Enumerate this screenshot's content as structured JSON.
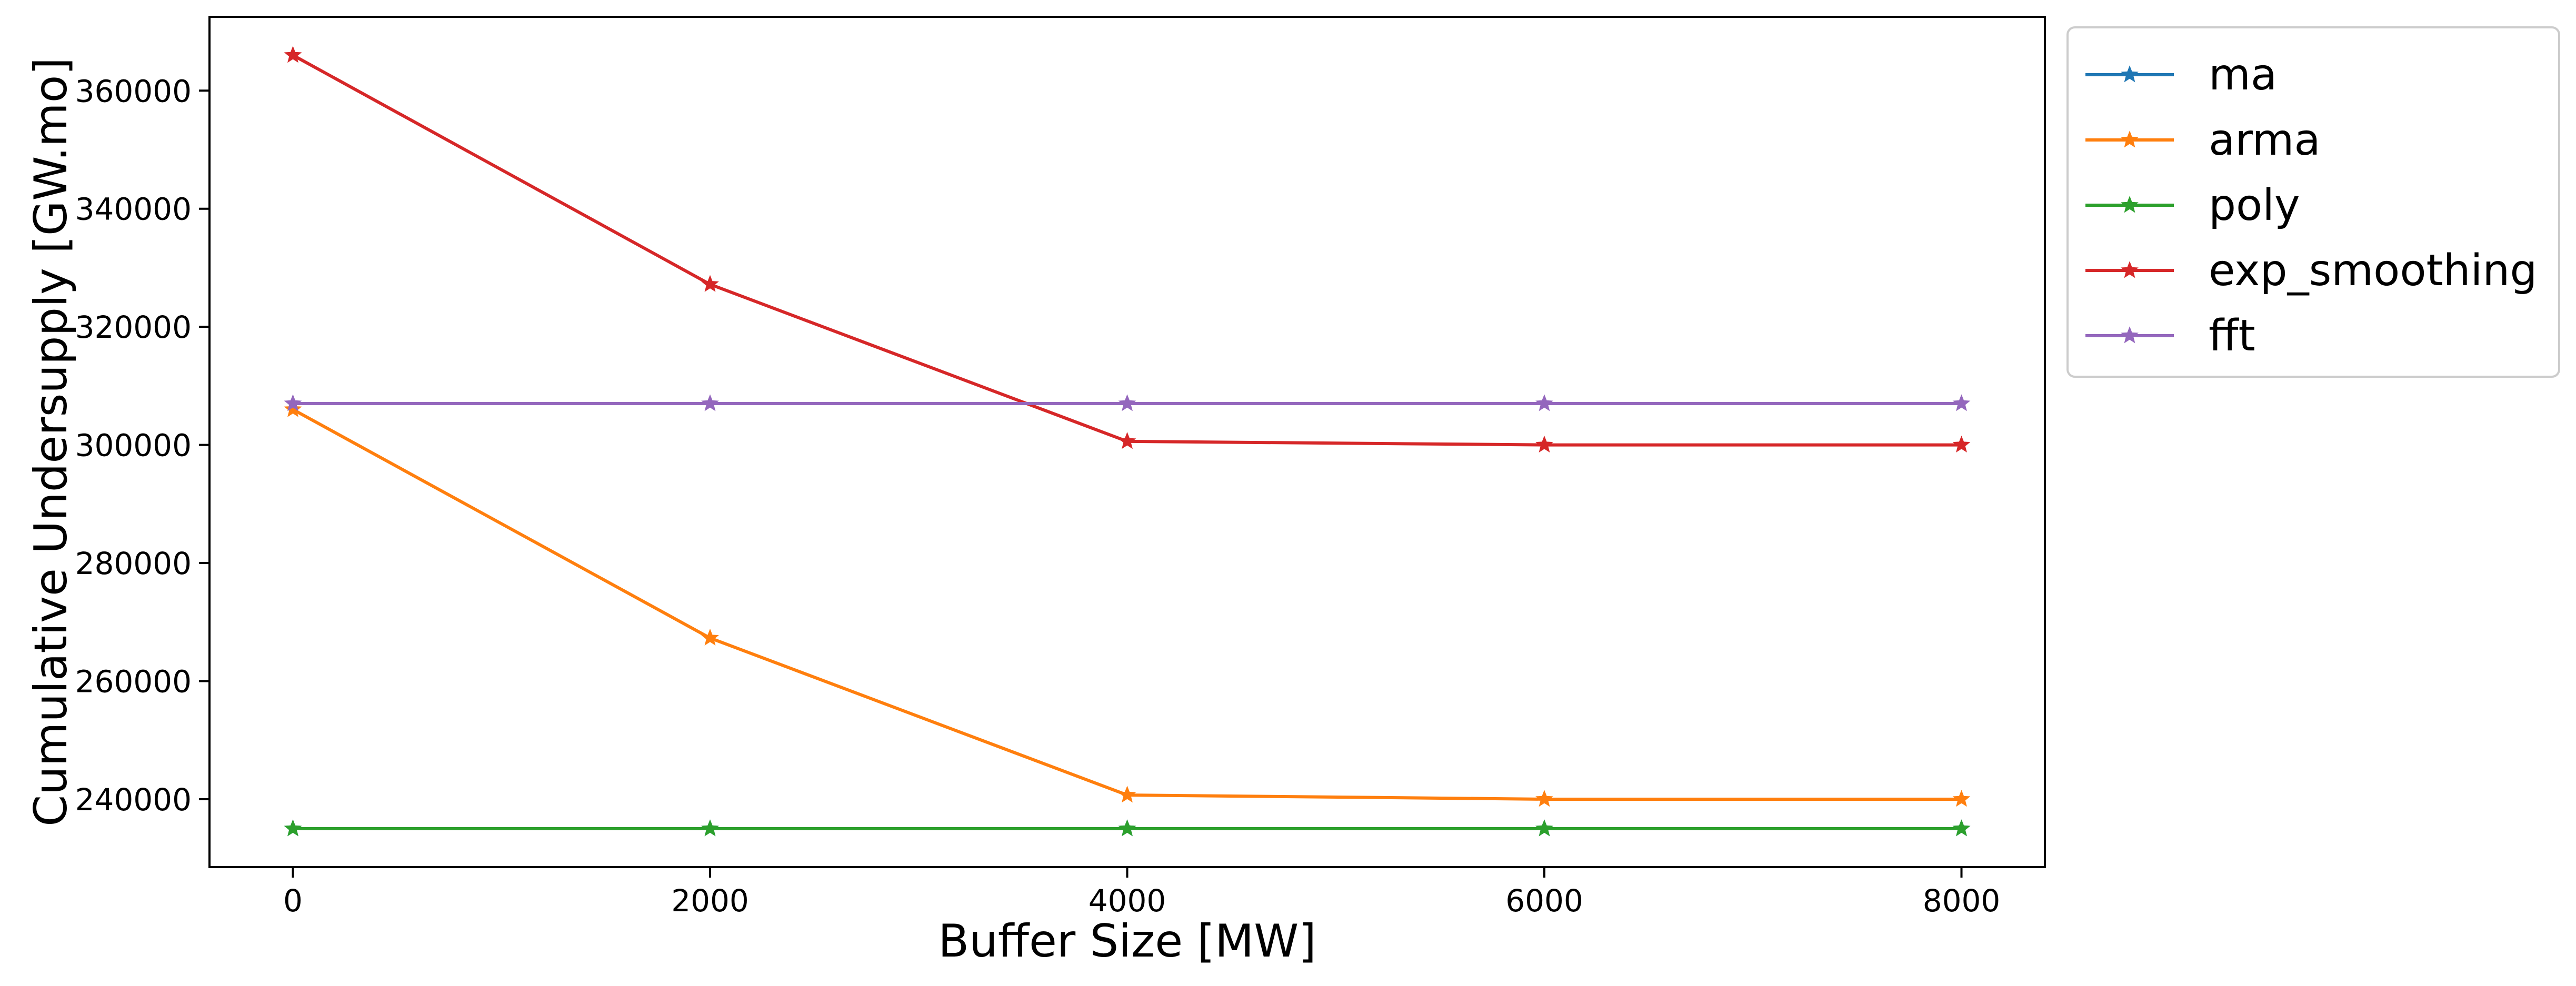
{
  "chart_data": {
    "type": "line",
    "xlabel": "Buffer Size [MW]",
    "ylabel": "Cumulative Undersupply [GW.mo]",
    "x": [
      0,
      2000,
      4000,
      6000,
      8000
    ],
    "xlim": [
      -400,
      8400
    ],
    "ylim": [
      228500,
      372500
    ],
    "xticks": [
      0,
      2000,
      4000,
      6000,
      8000
    ],
    "yticks": [
      240000,
      260000,
      280000,
      300000,
      320000,
      340000,
      360000
    ],
    "grid": false,
    "legend_position": "outside-top-right",
    "marker": "star",
    "series": [
      {
        "name": "ma",
        "color": "#1f77b4",
        "values": [
          235000,
          235000,
          235000,
          235000,
          235000
        ]
      },
      {
        "name": "arma",
        "color": "#ff7f0e",
        "values": [
          306000,
          267300,
          240700,
          240000,
          240000
        ]
      },
      {
        "name": "poly",
        "color": "#2ca02c",
        "values": [
          235000,
          235000,
          235000,
          235000,
          235000
        ]
      },
      {
        "name": "exp_smoothing",
        "color": "#d62728",
        "values": [
          366000,
          327200,
          300600,
          300000,
          300000
        ]
      },
      {
        "name": "fft",
        "color": "#9467bd",
        "values": [
          307000,
          307000,
          307000,
          307000,
          307000
        ]
      }
    ]
  }
}
